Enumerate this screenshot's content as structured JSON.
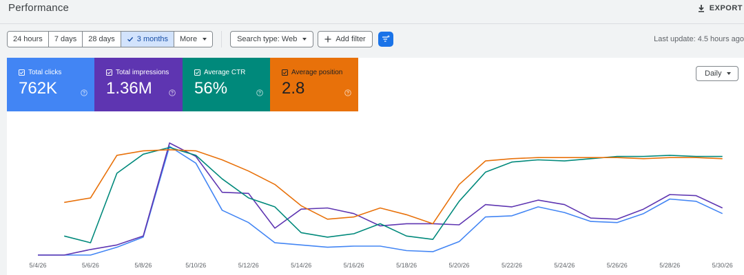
{
  "header": {
    "title": "Performance",
    "export_label": "EXPORT"
  },
  "toolbar": {
    "ranges": [
      {
        "label": "24 hours",
        "active": false
      },
      {
        "label": "7 days",
        "active": false
      },
      {
        "label": "28 days",
        "active": false
      },
      {
        "label": "3 months",
        "active": true
      },
      {
        "label": "More",
        "active": false
      }
    ],
    "search_type": "Search type: Web",
    "add_filter": "Add filter",
    "last_update": "Last update: 4.5 hours ago"
  },
  "metrics": [
    {
      "label": "Total clicks",
      "value": "762K",
      "color": "#4285f4"
    },
    {
      "label": "Total impressions",
      "value": "1.36M",
      "color": "#5e35b1"
    },
    {
      "label": "Average CTR",
      "value": "56%",
      "color": "#00897b"
    },
    {
      "label": "Average position",
      "value": "2.8",
      "color": "#e8710a"
    }
  ],
  "granularity": "Daily",
  "chart_data": {
    "type": "line",
    "x": [
      "5/4/26",
      "5/5/26",
      "5/6/26",
      "5/7/26",
      "5/8/26",
      "5/9/26",
      "5/10/26",
      "5/11/26",
      "5/12/26",
      "5/13/26",
      "5/14/26",
      "5/15/26",
      "5/16/26",
      "5/17/26",
      "5/18/26",
      "5/19/26",
      "5/20/26",
      "5/21/26",
      "5/22/26",
      "5/23/26",
      "5/24/26",
      "5/25/26",
      "5/26/26",
      "5/27/26",
      "5/28/26",
      "5/29/26",
      "5/30/26"
    ],
    "tick_labels": [
      "5/4/26",
      "5/6/26",
      "5/8/26",
      "5/10/26",
      "5/12/26",
      "5/14/26",
      "5/16/26",
      "5/18/26",
      "5/20/26",
      "5/22/26",
      "5/24/26",
      "5/26/26",
      "5/28/26",
      "5/30/26"
    ],
    "ylim": [
      0,
      100
    ],
    "series": [
      {
        "name": "Total clicks",
        "color": "#4285f4",
        "values": [
          0,
          0,
          0,
          7,
          16,
          97,
          82,
          40,
          29,
          11,
          9,
          7,
          8,
          8,
          4,
          3,
          12,
          34,
          35,
          43,
          38,
          30,
          29,
          37,
          50,
          48,
          37
        ]
      },
      {
        "name": "Total impressions",
        "color": "#5e35b1",
        "values": [
          0,
          0,
          5,
          9,
          17,
          100,
          88,
          56,
          55,
          24,
          41,
          42,
          37,
          26,
          28,
          28,
          27,
          45,
          43,
          49,
          45,
          33,
          32,
          41,
          54,
          53,
          42
        ]
      },
      {
        "name": "Average CTR",
        "color": "#00897b",
        "values": [
          null,
          17,
          11,
          73,
          90,
          96,
          89,
          68,
          51,
          43,
          20,
          16,
          19,
          28,
          17,
          14,
          48,
          74,
          83,
          85,
          84,
          86,
          88,
          88,
          89,
          88,
          88
        ]
      },
      {
        "name": "Average position",
        "color": "#e8710a",
        "values": [
          null,
          47,
          51,
          89,
          93,
          94,
          93,
          85,
          75,
          63,
          44,
          32,
          34,
          42,
          36,
          28,
          63,
          84,
          86,
          87,
          87,
          87,
          87,
          86,
          87,
          87,
          86
        ]
      }
    ]
  }
}
